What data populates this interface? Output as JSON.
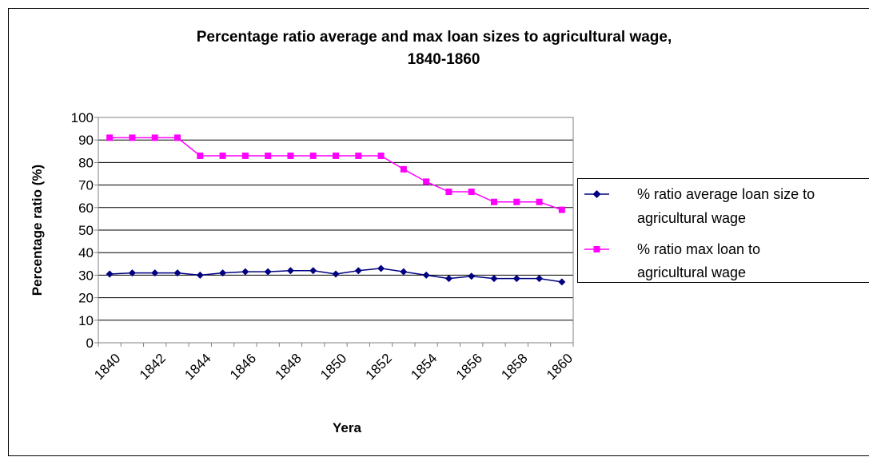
{
  "chart_data": {
    "type": "line",
    "title_line1": "Percentage ratio average and max loan sizes to agricultural wage,",
    "title_line2": "1840-1860",
    "xlabel": "Yera",
    "ylabel": "Percentage ratio (%)",
    "ylim": [
      0,
      100
    ],
    "yticks": [
      "0",
      "10",
      "20",
      "30",
      "40",
      "50",
      "60",
      "70",
      "80",
      "90",
      "100"
    ],
    "x": [
      1840,
      1841,
      1842,
      1843,
      1844,
      1845,
      1846,
      1847,
      1848,
      1849,
      1850,
      1851,
      1852,
      1853,
      1854,
      1855,
      1856,
      1857,
      1858,
      1859,
      1860
    ],
    "xtick_labels": [
      "1840",
      "1842",
      "1844",
      "1846",
      "1848",
      "1850",
      "1852",
      "1854",
      "1856",
      "1858",
      "1860"
    ],
    "grid": "horizontal",
    "legend_position": "right",
    "series": [
      {
        "name_line1": "% ratio average loan size to",
        "name_line2": "agricultural wage",
        "color": "#000080",
        "marker": "diamond",
        "values": [
          30.5,
          31,
          31,
          31,
          30,
          31,
          31.5,
          31.5,
          32,
          32,
          30.5,
          32,
          33,
          31.5,
          30,
          28.5,
          29.5,
          28.5,
          28.5,
          28.5,
          27
        ]
      },
      {
        "name_line1": "% ratio max loan to",
        "name_line2": "agricultural wage",
        "color": "#ff00ff",
        "marker": "square",
        "values": [
          91,
          91,
          91,
          91,
          83,
          83,
          83,
          83,
          83,
          83,
          83,
          83,
          83,
          77,
          71.5,
          67,
          67,
          62.5,
          62.5,
          62.5,
          59
        ]
      }
    ]
  }
}
